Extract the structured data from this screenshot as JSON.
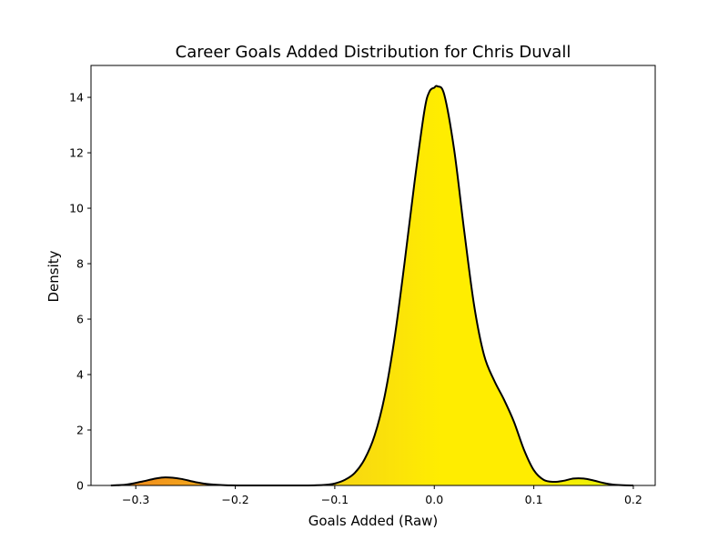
{
  "chart_data": {
    "type": "area",
    "title": "Career Goals Added Distribution for Chris Duvall",
    "xlabel": "Goals Added (Raw)",
    "ylabel": "Density",
    "xlim": [
      -0.345,
      0.222
    ],
    "ylim": [
      0,
      15.15
    ],
    "x_ticks": [
      -0.3,
      -0.2,
      -0.1,
      0.0,
      0.1,
      0.2
    ],
    "x_tick_labels": [
      "−0.3",
      "−0.2",
      "−0.1",
      "0.0",
      "0.1",
      "0.2"
    ],
    "y_ticks": [
      0,
      2,
      4,
      6,
      8,
      10,
      12,
      14
    ],
    "y_tick_labels": [
      "0",
      "2",
      "4",
      "6",
      "8",
      "10",
      "12",
      "14"
    ],
    "grid": false,
    "legend": "none",
    "series": [
      {
        "x": [
          -0.325,
          -0.31,
          -0.295,
          -0.28,
          -0.27,
          -0.255,
          -0.24,
          -0.225,
          -0.21,
          -0.19,
          -0.16,
          -0.13,
          -0.11,
          -0.1,
          -0.09,
          -0.08,
          -0.07,
          -0.06,
          -0.05,
          -0.04,
          -0.03,
          -0.02,
          -0.01,
          -0.005,
          0.0,
          0.003,
          0.01,
          0.02,
          0.03,
          0.04,
          0.05,
          0.06,
          0.07,
          0.08,
          0.09,
          0.1,
          0.11,
          0.12,
          0.13,
          0.14,
          0.15,
          0.16,
          0.17,
          0.18,
          0.19,
          0.2
        ],
        "y": [
          0.0,
          0.03,
          0.13,
          0.25,
          0.29,
          0.24,
          0.12,
          0.04,
          0.01,
          0.0,
          0.0,
          0.0,
          0.02,
          0.07,
          0.2,
          0.45,
          0.95,
          1.8,
          3.2,
          5.3,
          8.0,
          10.9,
          13.5,
          14.2,
          14.35,
          14.4,
          14.1,
          12.1,
          9.2,
          6.5,
          4.7,
          3.8,
          3.1,
          2.3,
          1.3,
          0.55,
          0.2,
          0.13,
          0.17,
          0.25,
          0.25,
          0.18,
          0.09,
          0.03,
          0.01,
          0.0
        ]
      }
    ],
    "colors": {
      "curve": "#000000",
      "fill_left": "#f07f1e",
      "fill_mid": "#f5d117",
      "fill_peak": "#ffed00",
      "fill_right": "#d9f50f"
    }
  }
}
